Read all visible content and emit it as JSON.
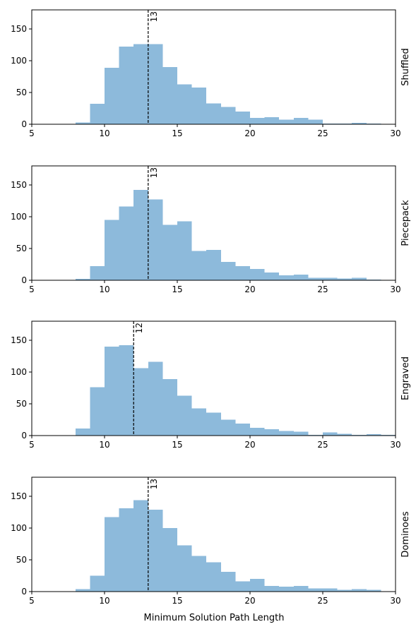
{
  "figure": {
    "xlabel": "Minimum Solution Path Length"
  },
  "style": {
    "bar_color": "#8dbadb",
    "median_line_color": "#000000"
  },
  "chart_data": [
    {
      "type": "bar",
      "name": "Shuffled",
      "bin_edges": [
        8,
        9,
        10,
        11,
        12,
        13,
        14,
        15,
        16,
        17,
        18,
        19,
        20,
        21,
        22,
        23,
        24,
        25,
        26,
        27,
        28,
        29
      ],
      "values": [
        3,
        32,
        89,
        122,
        126,
        126,
        90,
        63,
        58,
        33,
        27,
        20,
        10,
        11,
        7,
        10,
        7,
        1,
        1,
        2,
        1
      ],
      "median": 13,
      "median_label": "13",
      "xlim": [
        5,
        30
      ],
      "ylim": [
        0,
        180
      ],
      "xticks": [
        5,
        10,
        15,
        20,
        25,
        30
      ],
      "yticks": [
        0,
        50,
        100,
        150
      ]
    },
    {
      "type": "bar",
      "name": "Piecepack",
      "bin_edges": [
        8,
        9,
        10,
        11,
        12,
        13,
        14,
        15,
        16,
        17,
        18,
        19,
        20,
        21,
        22,
        23,
        24,
        25,
        26,
        27,
        28,
        29
      ],
      "values": [
        2,
        22,
        95,
        116,
        142,
        127,
        87,
        93,
        46,
        48,
        29,
        22,
        18,
        12,
        8,
        9,
        4,
        4,
        3,
        4,
        1
      ],
      "median": 13,
      "median_label": "13",
      "xlim": [
        5,
        30
      ],
      "ylim": [
        0,
        180
      ],
      "xticks": [
        5,
        10,
        15,
        20,
        25,
        30
      ],
      "yticks": [
        0,
        50,
        100,
        150
      ]
    },
    {
      "type": "bar",
      "name": "Engraved",
      "bin_edges": [
        8,
        9,
        10,
        11,
        12,
        13,
        14,
        15,
        16,
        17,
        18,
        19,
        20,
        21,
        22,
        23,
        24,
        25,
        26,
        27,
        28,
        29,
        30
      ],
      "values": [
        11,
        76,
        140,
        142,
        106,
        116,
        89,
        63,
        43,
        36,
        25,
        19,
        12,
        10,
        7,
        6,
        1,
        5,
        3,
        1,
        2,
        1
      ],
      "median": 12,
      "median_label": "12",
      "xlim": [
        5,
        30
      ],
      "ylim": [
        0,
        180
      ],
      "xticks": [
        5,
        10,
        15,
        20,
        25,
        30
      ],
      "yticks": [
        0,
        50,
        100,
        150
      ]
    },
    {
      "type": "bar",
      "name": "Dominoes",
      "bin_edges": [
        8,
        9,
        10,
        11,
        12,
        13,
        14,
        15,
        16,
        17,
        18,
        19,
        20,
        21,
        22,
        23,
        24,
        25,
        26,
        27,
        28,
        29
      ],
      "values": [
        4,
        25,
        117,
        131,
        144,
        129,
        100,
        73,
        56,
        46,
        31,
        16,
        20,
        9,
        8,
        9,
        5,
        5,
        3,
        4,
        3
      ],
      "median": 13,
      "median_label": "13",
      "xlim": [
        5,
        30
      ],
      "ylim": [
        0,
        180
      ],
      "xticks": [
        5,
        10,
        15,
        20,
        25,
        30
      ],
      "yticks": [
        0,
        50,
        100,
        150
      ]
    }
  ]
}
